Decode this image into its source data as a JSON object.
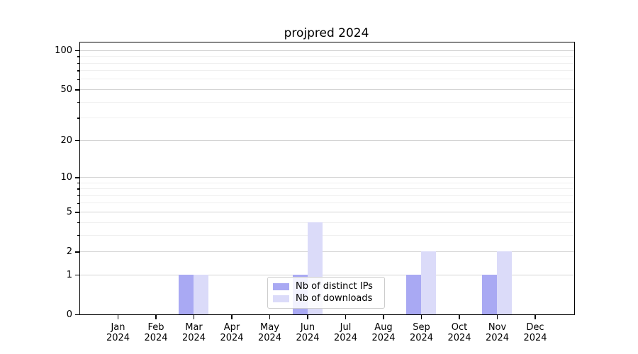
{
  "chart_data": {
    "type": "bar",
    "title": "projpred 2024",
    "categories": [
      "Jan 2024",
      "Feb 2024",
      "Mar 2024",
      "Apr 2024",
      "May 2024",
      "Jun 2024",
      "Jul 2024",
      "Aug 2024",
      "Sep 2024",
      "Oct 2024",
      "Nov 2024",
      "Dec 2024"
    ],
    "series": [
      {
        "name": "Nb of distinct IPs",
        "color": "#a9a9f3",
        "values": [
          0,
          0,
          1,
          0,
          0,
          1,
          0,
          0,
          1,
          0,
          1,
          0
        ]
      },
      {
        "name": "Nb of downloads",
        "color": "#dbdbf9",
        "values": [
          0,
          0,
          1,
          0,
          0,
          4,
          0,
          0,
          2,
          0,
          2,
          0
        ]
      }
    ],
    "xlabel": "",
    "ylabel": "",
    "y_scale": "log10(1+value)",
    "y_ticks_major": [
      0,
      1,
      2,
      5,
      10,
      20,
      50,
      100
    ],
    "y_ticks_minor": [
      3,
      4,
      6,
      7,
      8,
      9,
      30,
      40,
      60,
      70,
      80,
      90
    ],
    "ylim": [
      0,
      115
    ],
    "grid": "horizontal",
    "legend_position": "lower center",
    "bar_layout": "distinct-IPs bar left of month tick, downloads bar right of month tick"
  }
}
